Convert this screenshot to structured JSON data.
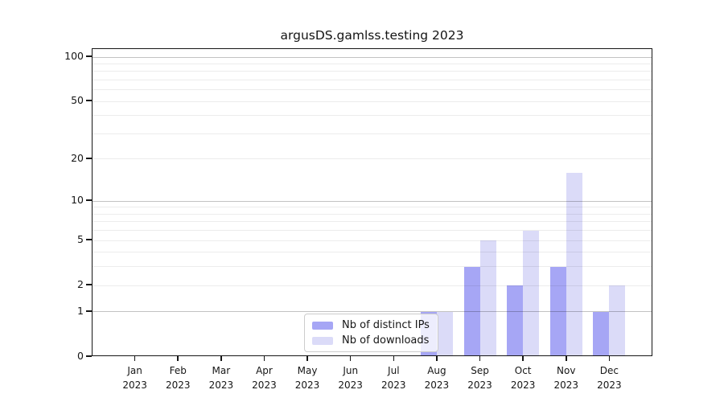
{
  "chart_data": {
    "type": "bar",
    "title": "argusDS.gamlss.testing 2023",
    "categories": [
      "Jan",
      "Feb",
      "Mar",
      "Apr",
      "May",
      "Jun",
      "Jul",
      "Aug",
      "Sep",
      "Oct",
      "Nov",
      "Dec"
    ],
    "year_label": "2023",
    "series": [
      {
        "name": "Nb of distinct IPs",
        "color": "#a6a6f5",
        "values": [
          0,
          0,
          0,
          0,
          0,
          0,
          0,
          1,
          3,
          2,
          3,
          1
        ]
      },
      {
        "name": "Nb of downloads",
        "color": "#dbdbf8",
        "values": [
          0,
          0,
          0,
          0,
          0,
          0,
          0,
          1,
          5,
          6,
          16,
          2
        ]
      }
    ],
    "y_axis": {
      "scale": "log1p",
      "tick_values": [
        0,
        1,
        2,
        5,
        10,
        20,
        50,
        100
      ],
      "major_grid_values": [
        1,
        10,
        100
      ],
      "minor_grid_values": [
        2,
        3,
        4,
        5,
        6,
        7,
        8,
        9,
        20,
        30,
        40,
        50,
        60,
        70,
        80,
        90
      ],
      "axis_max_tick": 100
    },
    "legend": {
      "location": "lower center",
      "entries": [
        "Nb of distinct IPs",
        "Nb of downloads"
      ]
    },
    "grid": true
  },
  "colors": {
    "bar_distinct_ips": "#a6a6f5",
    "bar_downloads": "#dbdbf8",
    "axis": "#161616",
    "legend_border": "#cccccc"
  }
}
